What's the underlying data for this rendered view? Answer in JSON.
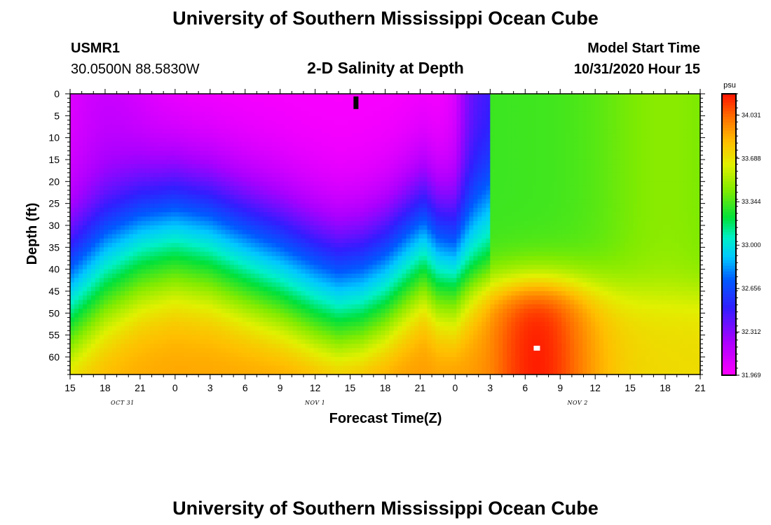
{
  "header": {
    "title": "University of Southern Mississippi Ocean Cube",
    "station": "USMR1",
    "coords": "30.0500N 88.5830W",
    "subtitle": "2-D Salinity at Depth",
    "model_start_label": "Model Start Time",
    "model_start_value": "10/31/2020 Hour 15"
  },
  "footer": {
    "title": "University of Southern Mississippi Ocean Cube"
  },
  "colors": {
    "background": "#ffffff",
    "frame": "#000000"
  },
  "chart_data": {
    "type": "heatmap",
    "title": "2-D Salinity at Depth",
    "xlabel": "Forecast Time(Z)",
    "ylabel": "Depth (ft)",
    "x_ticks": [
      {
        "hour": 0,
        "label": "15"
      },
      {
        "hour": 3,
        "label": "18"
      },
      {
        "hour": 6,
        "label": "21"
      },
      {
        "hour": 9,
        "label": "0"
      },
      {
        "hour": 12,
        "label": "3"
      },
      {
        "hour": 15,
        "label": "6"
      },
      {
        "hour": 18,
        "label": "9"
      },
      {
        "hour": 21,
        "label": "12"
      },
      {
        "hour": 24,
        "label": "15"
      },
      {
        "hour": 27,
        "label": "18"
      },
      {
        "hour": 30,
        "label": "21"
      },
      {
        "hour": 33,
        "label": "0"
      },
      {
        "hour": 36,
        "label": "3"
      },
      {
        "hour": 39,
        "label": "6"
      },
      {
        "hour": 42,
        "label": "9"
      },
      {
        "hour": 45,
        "label": "12"
      },
      {
        "hour": 48,
        "label": "15"
      },
      {
        "hour": 51,
        "label": "18"
      },
      {
        "hour": 54,
        "label": "21"
      }
    ],
    "x_range_hours": [
      0,
      54
    ],
    "date_labels": [
      {
        "hour": 4.5,
        "label": "OCT 31"
      },
      {
        "hour": 21,
        "label": "NOV 1"
      },
      {
        "hour": 43.5,
        "label": "NOV 2"
      }
    ],
    "y_ticks": [
      0,
      5,
      10,
      15,
      20,
      25,
      30,
      35,
      40,
      45,
      50,
      55,
      60
    ],
    "y_range_ft": [
      0,
      64
    ],
    "colorbar": {
      "unit": "psu",
      "min": 31.969,
      "max": 34.2,
      "tick_labels": [
        "34.031",
        "33.688",
        "33.344",
        "33.000",
        "32.656",
        "32.312",
        "31.969"
      ],
      "tick_values": [
        34.031,
        33.688,
        33.344,
        33.0,
        32.656,
        32.312,
        31.969
      ]
    },
    "halocline_depth_ft": [
      {
        "hour": 0,
        "depth": 38
      },
      {
        "hour": 3,
        "depth": 31
      },
      {
        "hour": 6,
        "depth": 27
      },
      {
        "hour": 9,
        "depth": 25
      },
      {
        "hour": 12,
        "depth": 26
      },
      {
        "hour": 15,
        "depth": 29
      },
      {
        "hour": 18,
        "depth": 32
      },
      {
        "hour": 21,
        "depth": 36
      },
      {
        "hour": 23,
        "depth": 38
      },
      {
        "hour": 25,
        "depth": 37
      },
      {
        "hour": 27,
        "depth": 34
      },
      {
        "hour": 29,
        "depth": 29
      },
      {
        "hour": 30.3,
        "depth": 26
      },
      {
        "hour": 31.5,
        "depth": 30
      },
      {
        "hour": 33,
        "depth": 32
      },
      {
        "hour": 34.5,
        "depth": 28
      },
      {
        "hour": 36,
        "depth": 25
      }
    ],
    "notes": "Salinity ~32.0 psu near surface west of hour 36, ~33.3-33.5 psu east of front; ~34.1 psu core at depth 45-64 ft, hours 35-45; black marker near surface at hour 24.5, white marker at 58 ft, hour 40."
  }
}
